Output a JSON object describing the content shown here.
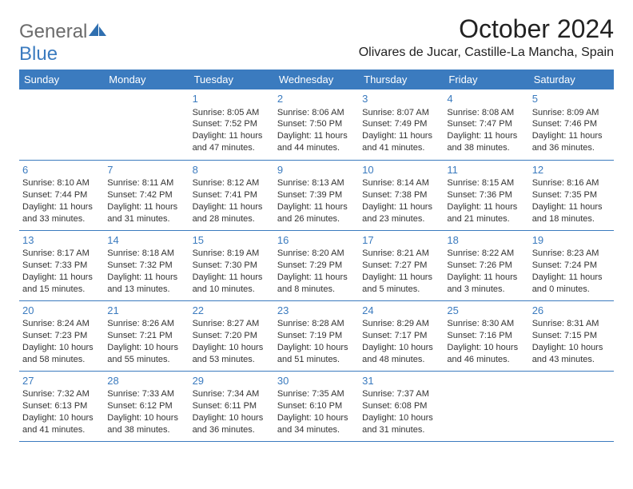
{
  "brand": {
    "part1": "General",
    "part2": "Blue"
  },
  "title": "October 2024",
  "location": "Olivares de Jucar, Castille-La Mancha, Spain",
  "colors": {
    "header_bg": "#3b7bbf",
    "header_fg": "#ffffff",
    "daynum": "#3b7bbf",
    "border": "#3b7bbf",
    "logo_gray": "#6b6b6b",
    "logo_blue": "#3b7bbf"
  },
  "weekdays": [
    "Sunday",
    "Monday",
    "Tuesday",
    "Wednesday",
    "Thursday",
    "Friday",
    "Saturday"
  ],
  "weeks": [
    [
      null,
      null,
      {
        "n": "1",
        "sr": "Sunrise: 8:05 AM",
        "ss": "Sunset: 7:52 PM",
        "d1": "Daylight: 11 hours",
        "d2": "and 47 minutes."
      },
      {
        "n": "2",
        "sr": "Sunrise: 8:06 AM",
        "ss": "Sunset: 7:50 PM",
        "d1": "Daylight: 11 hours",
        "d2": "and 44 minutes."
      },
      {
        "n": "3",
        "sr": "Sunrise: 8:07 AM",
        "ss": "Sunset: 7:49 PM",
        "d1": "Daylight: 11 hours",
        "d2": "and 41 minutes."
      },
      {
        "n": "4",
        "sr": "Sunrise: 8:08 AM",
        "ss": "Sunset: 7:47 PM",
        "d1": "Daylight: 11 hours",
        "d2": "and 38 minutes."
      },
      {
        "n": "5",
        "sr": "Sunrise: 8:09 AM",
        "ss": "Sunset: 7:46 PM",
        "d1": "Daylight: 11 hours",
        "d2": "and 36 minutes."
      }
    ],
    [
      {
        "n": "6",
        "sr": "Sunrise: 8:10 AM",
        "ss": "Sunset: 7:44 PM",
        "d1": "Daylight: 11 hours",
        "d2": "and 33 minutes."
      },
      {
        "n": "7",
        "sr": "Sunrise: 8:11 AM",
        "ss": "Sunset: 7:42 PM",
        "d1": "Daylight: 11 hours",
        "d2": "and 31 minutes."
      },
      {
        "n": "8",
        "sr": "Sunrise: 8:12 AM",
        "ss": "Sunset: 7:41 PM",
        "d1": "Daylight: 11 hours",
        "d2": "and 28 minutes."
      },
      {
        "n": "9",
        "sr": "Sunrise: 8:13 AM",
        "ss": "Sunset: 7:39 PM",
        "d1": "Daylight: 11 hours",
        "d2": "and 26 minutes."
      },
      {
        "n": "10",
        "sr": "Sunrise: 8:14 AM",
        "ss": "Sunset: 7:38 PM",
        "d1": "Daylight: 11 hours",
        "d2": "and 23 minutes."
      },
      {
        "n": "11",
        "sr": "Sunrise: 8:15 AM",
        "ss": "Sunset: 7:36 PM",
        "d1": "Daylight: 11 hours",
        "d2": "and 21 minutes."
      },
      {
        "n": "12",
        "sr": "Sunrise: 8:16 AM",
        "ss": "Sunset: 7:35 PM",
        "d1": "Daylight: 11 hours",
        "d2": "and 18 minutes."
      }
    ],
    [
      {
        "n": "13",
        "sr": "Sunrise: 8:17 AM",
        "ss": "Sunset: 7:33 PM",
        "d1": "Daylight: 11 hours",
        "d2": "and 15 minutes."
      },
      {
        "n": "14",
        "sr": "Sunrise: 8:18 AM",
        "ss": "Sunset: 7:32 PM",
        "d1": "Daylight: 11 hours",
        "d2": "and 13 minutes."
      },
      {
        "n": "15",
        "sr": "Sunrise: 8:19 AM",
        "ss": "Sunset: 7:30 PM",
        "d1": "Daylight: 11 hours",
        "d2": "and 10 minutes."
      },
      {
        "n": "16",
        "sr": "Sunrise: 8:20 AM",
        "ss": "Sunset: 7:29 PM",
        "d1": "Daylight: 11 hours",
        "d2": "and 8 minutes."
      },
      {
        "n": "17",
        "sr": "Sunrise: 8:21 AM",
        "ss": "Sunset: 7:27 PM",
        "d1": "Daylight: 11 hours",
        "d2": "and 5 minutes."
      },
      {
        "n": "18",
        "sr": "Sunrise: 8:22 AM",
        "ss": "Sunset: 7:26 PM",
        "d1": "Daylight: 11 hours",
        "d2": "and 3 minutes."
      },
      {
        "n": "19",
        "sr": "Sunrise: 8:23 AM",
        "ss": "Sunset: 7:24 PM",
        "d1": "Daylight: 11 hours",
        "d2": "and 0 minutes."
      }
    ],
    [
      {
        "n": "20",
        "sr": "Sunrise: 8:24 AM",
        "ss": "Sunset: 7:23 PM",
        "d1": "Daylight: 10 hours",
        "d2": "and 58 minutes."
      },
      {
        "n": "21",
        "sr": "Sunrise: 8:26 AM",
        "ss": "Sunset: 7:21 PM",
        "d1": "Daylight: 10 hours",
        "d2": "and 55 minutes."
      },
      {
        "n": "22",
        "sr": "Sunrise: 8:27 AM",
        "ss": "Sunset: 7:20 PM",
        "d1": "Daylight: 10 hours",
        "d2": "and 53 minutes."
      },
      {
        "n": "23",
        "sr": "Sunrise: 8:28 AM",
        "ss": "Sunset: 7:19 PM",
        "d1": "Daylight: 10 hours",
        "d2": "and 51 minutes."
      },
      {
        "n": "24",
        "sr": "Sunrise: 8:29 AM",
        "ss": "Sunset: 7:17 PM",
        "d1": "Daylight: 10 hours",
        "d2": "and 48 minutes."
      },
      {
        "n": "25",
        "sr": "Sunrise: 8:30 AM",
        "ss": "Sunset: 7:16 PM",
        "d1": "Daylight: 10 hours",
        "d2": "and 46 minutes."
      },
      {
        "n": "26",
        "sr": "Sunrise: 8:31 AM",
        "ss": "Sunset: 7:15 PM",
        "d1": "Daylight: 10 hours",
        "d2": "and 43 minutes."
      }
    ],
    [
      {
        "n": "27",
        "sr": "Sunrise: 7:32 AM",
        "ss": "Sunset: 6:13 PM",
        "d1": "Daylight: 10 hours",
        "d2": "and 41 minutes."
      },
      {
        "n": "28",
        "sr": "Sunrise: 7:33 AM",
        "ss": "Sunset: 6:12 PM",
        "d1": "Daylight: 10 hours",
        "d2": "and 38 minutes."
      },
      {
        "n": "29",
        "sr": "Sunrise: 7:34 AM",
        "ss": "Sunset: 6:11 PM",
        "d1": "Daylight: 10 hours",
        "d2": "and 36 minutes."
      },
      {
        "n": "30",
        "sr": "Sunrise: 7:35 AM",
        "ss": "Sunset: 6:10 PM",
        "d1": "Daylight: 10 hours",
        "d2": "and 34 minutes."
      },
      {
        "n": "31",
        "sr": "Sunrise: 7:37 AM",
        "ss": "Sunset: 6:08 PM",
        "d1": "Daylight: 10 hours",
        "d2": "and 31 minutes."
      },
      null,
      null
    ]
  ]
}
